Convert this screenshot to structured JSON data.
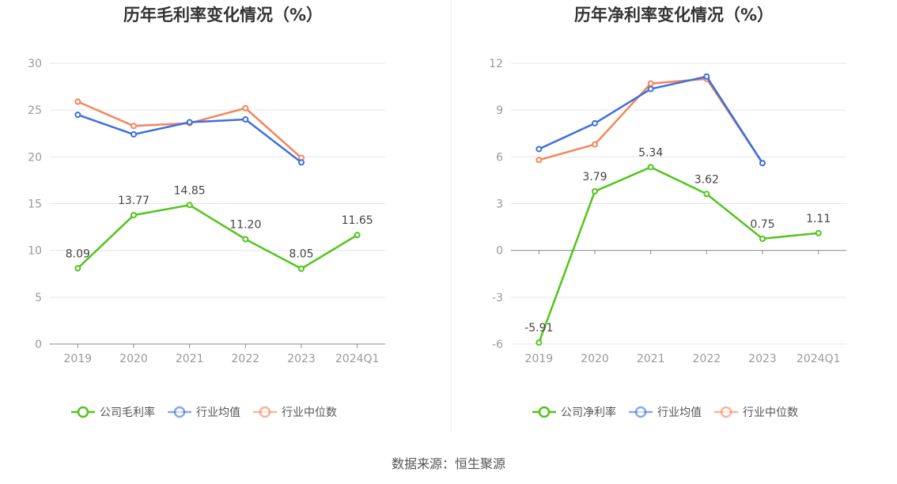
{
  "footer": "数据来源：恒生聚源",
  "colors": {
    "company": "#52c41a",
    "average": "#3b6fe0",
    "median": "#f5845a"
  },
  "chart_data": [
    {
      "type": "line",
      "title": "历年毛利率变化情况（%）",
      "categories": [
        "2019",
        "2020",
        "2021",
        "2022",
        "2023",
        "2024Q1"
      ],
      "ylim": [
        0,
        30
      ],
      "yticks": [
        0,
        5,
        10,
        15,
        20,
        25,
        30
      ],
      "grid": true,
      "legend": "bottom",
      "series": [
        {
          "name": "公司毛利率",
          "values": [
            8.09,
            13.77,
            14.85,
            11.2,
            8.05,
            11.65
          ],
          "labels": [
            "8.09",
            "13.77",
            "14.85",
            "11.20",
            "8.05",
            "11.65"
          ]
        },
        {
          "name": "行业均值",
          "values": [
            24.5,
            22.4,
            23.7,
            24.0,
            19.4,
            null
          ]
        },
        {
          "name": "行业中位数",
          "values": [
            25.9,
            23.3,
            23.6,
            25.2,
            19.9,
            null
          ]
        }
      ]
    },
    {
      "type": "line",
      "title": "历年净利率变化情况（%）",
      "categories": [
        "2019",
        "2020",
        "2021",
        "2022",
        "2023",
        "2024Q1"
      ],
      "ylim": [
        -6,
        12
      ],
      "yticks": [
        -6,
        -3,
        0,
        3,
        6,
        9,
        12
      ],
      "grid": true,
      "legend": "bottom",
      "series": [
        {
          "name": "公司净利率",
          "values": [
            -5.91,
            3.79,
            5.34,
            3.62,
            0.75,
            1.11
          ],
          "labels": [
            "-5.91",
            "3.79",
            "5.34",
            "3.62",
            "0.75",
            "1.11"
          ]
        },
        {
          "name": "行业均值",
          "values": [
            6.5,
            8.15,
            10.35,
            11.15,
            5.6,
            null
          ]
        },
        {
          "name": "行业中位数",
          "values": [
            5.8,
            6.8,
            10.7,
            11.0,
            5.6,
            null
          ]
        }
      ]
    }
  ]
}
